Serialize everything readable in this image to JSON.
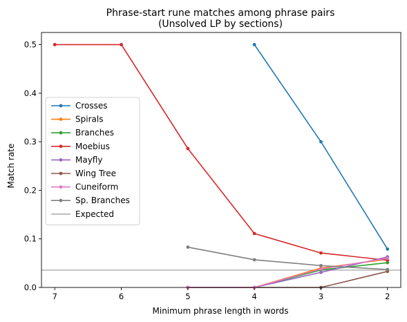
{
  "chart_data": {
    "type": "line",
    "title": "Phrase-start rune matches among phrase pairs",
    "subtitle": "(Unsolved LP by sections)",
    "xlabel": "Minimum phrase length in words",
    "ylabel": "Match rate",
    "x_ticks": [
      7,
      6,
      5,
      4,
      3,
      2
    ],
    "y_ticks": [
      "0.0",
      "0.1",
      "0.2",
      "0.3",
      "0.4",
      "0.5"
    ],
    "xlim": [
      7.2,
      1.8
    ],
    "ylim": [
      0,
      0.525
    ],
    "x_reversed": true,
    "grid": false,
    "legend_position": "center-left",
    "series": [
      {
        "name": "Crosses",
        "color": "#1f77b4",
        "x": [
          4,
          3,
          2
        ],
        "y": [
          0.5,
          0.3,
          0.079
        ]
      },
      {
        "name": "Spirals",
        "color": "#ff7f0e",
        "x": [
          5,
          4,
          3,
          2
        ],
        "y": [
          0.0,
          0.0,
          0.04,
          0.058
        ]
      },
      {
        "name": "Branches",
        "color": "#2ca02c",
        "x": [
          5,
          4,
          3,
          2
        ],
        "y": [
          0.0,
          0.0,
          0.036,
          0.051
        ]
      },
      {
        "name": "Moebius",
        "color": "#d62728",
        "x": [
          7,
          6,
          5,
          4,
          3,
          2
        ],
        "y": [
          0.5,
          0.5,
          0.286,
          0.111,
          0.071,
          0.056
        ]
      },
      {
        "name": "Mayfly",
        "color": "#9467bd",
        "x": [
          5,
          4,
          3,
          2
        ],
        "y": [
          0.0,
          0.0,
          0.031,
          0.063
        ]
      },
      {
        "name": "Wing Tree",
        "color": "#8c564b",
        "x": [
          5,
          4,
          3,
          2
        ],
        "y": [
          0.0,
          0.0,
          0.0,
          0.033
        ]
      },
      {
        "name": "Cuneiform",
        "color": "#e377c2",
        "x": [
          5,
          4,
          3,
          2
        ],
        "y": [
          0.0,
          0.0,
          0.038,
          0.06
        ]
      },
      {
        "name": "Sp. Branches",
        "color": "#7f7f7f",
        "x": [
          5,
          4,
          3,
          2
        ],
        "y": [
          0.083,
          0.057,
          0.045,
          0.037
        ]
      }
    ],
    "reference_line": {
      "name": "Expected",
      "color": "#b0b0b0",
      "y": 0.0357
    }
  }
}
